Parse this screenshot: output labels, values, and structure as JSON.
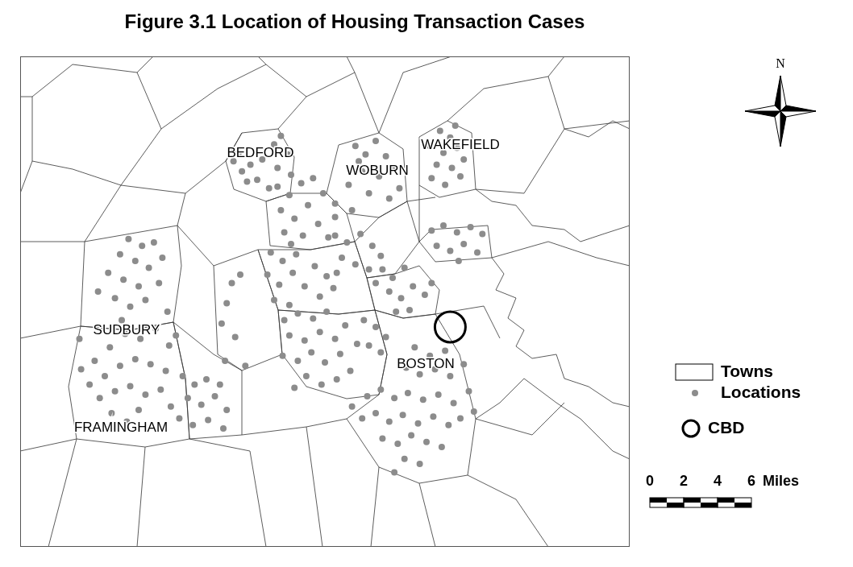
{
  "chart_data": {
    "type": "scatter",
    "title": "Figure 3.1 Location of Housing Transaction Cases",
    "xlim": [
      0,
      36
    ],
    "ylim": [
      0,
      29
    ],
    "tick_labels": false,
    "grid": false,
    "legend": "right",
    "boundaries_name": "Towns",
    "town_labels": [
      "BEDFORD",
      "WOBURN",
      "WAKEFIELD",
      "SUDBURY",
      "BOSTON",
      "FRAMINGHAM"
    ],
    "north_label": "N",
    "scale_bar": {
      "ticks": [
        0,
        2,
        4,
        6
      ],
      "label": "Miles"
    },
    "series": [
      {
        "name": "Locations",
        "color": "#8c8c8c",
        "marker": "circle",
        "values": [
          [
            12.6,
            22.8
          ],
          [
            13.1,
            22.2
          ],
          [
            12.9,
            23.3
          ],
          [
            13.6,
            22.6
          ],
          [
            14.0,
            21.7
          ],
          [
            14.3,
            22.9
          ],
          [
            15.0,
            23.8
          ],
          [
            15.4,
            24.3
          ],
          [
            15.8,
            23.2
          ],
          [
            15.2,
            22.4
          ],
          [
            16.0,
            22.0
          ],
          [
            14.7,
            21.2
          ],
          [
            13.4,
            21.6
          ],
          [
            15.2,
            21.3
          ],
          [
            15.9,
            20.8
          ],
          [
            16.6,
            21.5
          ],
          [
            15.4,
            19.9
          ],
          [
            16.2,
            19.4
          ],
          [
            17.0,
            20.2
          ],
          [
            17.6,
            19.1
          ],
          [
            16.7,
            18.4
          ],
          [
            15.6,
            18.6
          ],
          [
            18.2,
            18.3
          ],
          [
            17.9,
            20.9
          ],
          [
            18.6,
            19.5
          ],
          [
            16.0,
            17.9
          ],
          [
            17.3,
            21.8
          ],
          [
            19.8,
            23.7
          ],
          [
            20.4,
            23.2
          ],
          [
            21.0,
            24.0
          ],
          [
            21.6,
            23.1
          ],
          [
            20.2,
            22.2
          ],
          [
            21.2,
            21.9
          ],
          [
            22.1,
            22.4
          ],
          [
            19.4,
            21.4
          ],
          [
            20.6,
            20.9
          ],
          [
            21.8,
            20.6
          ],
          [
            18.6,
            20.3
          ],
          [
            19.6,
            19.9
          ],
          [
            22.4,
            21.2
          ],
          [
            20.0,
            22.8
          ],
          [
            24.8,
            24.6
          ],
          [
            25.4,
            24.2
          ],
          [
            24.2,
            23.7
          ],
          [
            25.0,
            23.3
          ],
          [
            25.8,
            23.6
          ],
          [
            24.6,
            22.6
          ],
          [
            25.5,
            22.4
          ],
          [
            26.2,
            22.9
          ],
          [
            24.3,
            21.8
          ],
          [
            25.1,
            21.4
          ],
          [
            26.0,
            21.9
          ],
          [
            25.7,
            24.9
          ],
          [
            18.6,
            18.4
          ],
          [
            19.3,
            18.0
          ],
          [
            20.1,
            18.5
          ],
          [
            20.8,
            17.8
          ],
          [
            19.0,
            17.1
          ],
          [
            19.8,
            16.7
          ],
          [
            20.6,
            16.4
          ],
          [
            21.3,
            17.2
          ],
          [
            18.7,
            16.2
          ],
          [
            21.0,
            15.6
          ],
          [
            24.3,
            18.7
          ],
          [
            25.0,
            19.0
          ],
          [
            25.8,
            18.6
          ],
          [
            26.6,
            18.9
          ],
          [
            27.3,
            18.5
          ],
          [
            24.6,
            17.8
          ],
          [
            25.4,
            17.5
          ],
          [
            26.2,
            17.9
          ],
          [
            27.0,
            17.4
          ],
          [
            25.9,
            16.9
          ],
          [
            21.4,
            16.4
          ],
          [
            22.0,
            15.9
          ],
          [
            22.7,
            16.5
          ],
          [
            21.8,
            15.1
          ],
          [
            22.5,
            14.7
          ],
          [
            23.2,
            15.4
          ],
          [
            23.9,
            14.9
          ],
          [
            23.0,
            14.0
          ],
          [
            22.2,
            13.9
          ],
          [
            24.3,
            15.6
          ],
          [
            14.8,
            17.4
          ],
          [
            15.5,
            16.9
          ],
          [
            16.3,
            17.3
          ],
          [
            14.6,
            16.1
          ],
          [
            15.3,
            15.5
          ],
          [
            16.1,
            16.2
          ],
          [
            16.8,
            15.4
          ],
          [
            17.4,
            16.6
          ],
          [
            18.1,
            16.0
          ],
          [
            15.0,
            14.6
          ],
          [
            15.9,
            14.3
          ],
          [
            17.7,
            14.8
          ],
          [
            18.5,
            15.3
          ],
          [
            12.5,
            15.6
          ],
          [
            13.0,
            16.1
          ],
          [
            12.2,
            14.4
          ],
          [
            11.9,
            13.2
          ],
          [
            12.7,
            12.4
          ],
          [
            12.1,
            11.0
          ],
          [
            13.3,
            10.7
          ],
          [
            11.8,
            9.6
          ],
          [
            15.6,
            13.4
          ],
          [
            16.4,
            13.8
          ],
          [
            17.3,
            13.5
          ],
          [
            18.1,
            13.9
          ],
          [
            15.9,
            12.5
          ],
          [
            16.8,
            12.2
          ],
          [
            17.7,
            12.7
          ],
          [
            18.6,
            12.3
          ],
          [
            19.2,
            13.1
          ],
          [
            15.5,
            11.3
          ],
          [
            16.4,
            11.0
          ],
          [
            17.2,
            11.5
          ],
          [
            18.0,
            10.9
          ],
          [
            18.9,
            11.4
          ],
          [
            16.9,
            10.1
          ],
          [
            17.8,
            9.6
          ],
          [
            18.7,
            9.9
          ],
          [
            19.5,
            10.4
          ],
          [
            16.2,
            9.4
          ],
          [
            19.9,
            12.0
          ],
          [
            20.3,
            13.4
          ],
          [
            21.0,
            13.0
          ],
          [
            21.6,
            12.4
          ],
          [
            20.6,
            11.9
          ],
          [
            21.3,
            11.5
          ],
          [
            6.4,
            18.2
          ],
          [
            7.2,
            17.8
          ],
          [
            7.9,
            18.0
          ],
          [
            5.9,
            17.3
          ],
          [
            6.8,
            16.9
          ],
          [
            7.6,
            16.5
          ],
          [
            8.4,
            17.1
          ],
          [
            5.2,
            16.2
          ],
          [
            6.1,
            15.8
          ],
          [
            7.0,
            15.4
          ],
          [
            5.6,
            14.7
          ],
          [
            6.5,
            14.2
          ],
          [
            7.4,
            14.6
          ],
          [
            8.2,
            15.6
          ],
          [
            8.7,
            13.9
          ],
          [
            4.6,
            15.1
          ],
          [
            6.0,
            13.4
          ],
          [
            3.6,
            10.5
          ],
          [
            4.4,
            11.0
          ],
          [
            5.3,
            11.8
          ],
          [
            6.2,
            12.6
          ],
          [
            7.1,
            12.3
          ],
          [
            8.0,
            12.9
          ],
          [
            8.8,
            11.9
          ],
          [
            4.1,
            9.6
          ],
          [
            5.0,
            10.1
          ],
          [
            5.9,
            10.7
          ],
          [
            6.8,
            11.1
          ],
          [
            7.7,
            10.8
          ],
          [
            8.6,
            10.4
          ],
          [
            4.7,
            8.8
          ],
          [
            5.6,
            9.2
          ],
          [
            6.5,
            9.5
          ],
          [
            7.4,
            9.0
          ],
          [
            8.3,
            9.3
          ],
          [
            5.4,
            7.9
          ],
          [
            6.3,
            7.4
          ],
          [
            7.0,
            8.1
          ],
          [
            9.2,
            12.5
          ],
          [
            3.5,
            12.3
          ],
          [
            9.6,
            10.1
          ],
          [
            10.3,
            9.6
          ],
          [
            11.0,
            9.9
          ],
          [
            9.9,
            8.8
          ],
          [
            10.7,
            8.4
          ],
          [
            11.5,
            8.9
          ],
          [
            12.2,
            8.1
          ],
          [
            9.4,
            7.6
          ],
          [
            10.2,
            7.2
          ],
          [
            11.1,
            7.5
          ],
          [
            12.0,
            7.0
          ],
          [
            8.9,
            8.3
          ],
          [
            23.3,
            11.8
          ],
          [
            24.2,
            11.3
          ],
          [
            25.1,
            11.6
          ],
          [
            22.8,
            10.6
          ],
          [
            23.6,
            10.2
          ],
          [
            24.5,
            10.5
          ],
          [
            25.4,
            10.1
          ],
          [
            26.2,
            10.8
          ],
          [
            20.5,
            8.9
          ],
          [
            21.3,
            9.3
          ],
          [
            22.1,
            8.8
          ],
          [
            22.9,
            9.1
          ],
          [
            23.8,
            8.7
          ],
          [
            24.7,
            9.0
          ],
          [
            25.6,
            8.5
          ],
          [
            26.5,
            9.2
          ],
          [
            20.2,
            7.6
          ],
          [
            21.0,
            7.9
          ],
          [
            21.8,
            7.4
          ],
          [
            22.6,
            7.8
          ],
          [
            23.5,
            7.3
          ],
          [
            24.4,
            7.7
          ],
          [
            25.3,
            7.2
          ],
          [
            26.0,
            7.6
          ],
          [
            21.4,
            6.4
          ],
          [
            22.3,
            6.1
          ],
          [
            23.1,
            6.6
          ],
          [
            24.0,
            6.2
          ],
          [
            24.9,
            5.9
          ],
          [
            22.7,
            5.2
          ],
          [
            23.6,
            4.9
          ],
          [
            22.1,
            4.4
          ],
          [
            19.6,
            8.3
          ],
          [
            26.8,
            8.0
          ]
        ]
      },
      {
        "name": "CBD",
        "color": "#000000",
        "marker": "ring",
        "values": [
          [
            25.4,
            13.0
          ]
        ]
      }
    ]
  }
}
